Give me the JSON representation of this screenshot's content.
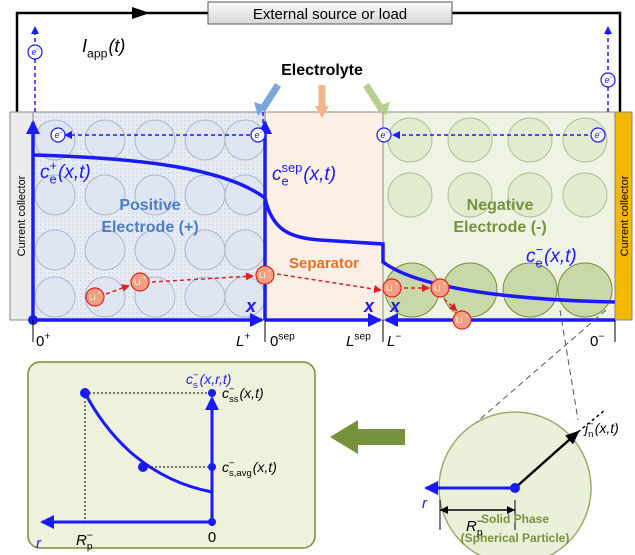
{
  "external_source": "External source or load",
  "applied_current": {
    "base": "I",
    "sub": "app",
    "arg": "(t)"
  },
  "electrolyte": "Electrolyte",
  "regions": {
    "left_collector": "Current collector",
    "positive": {
      "line1": "Positive",
      "line2": "Electrode (+)"
    },
    "separator": "Separator",
    "negative": {
      "line1": "Negative",
      "line2": "Electrode (-)"
    },
    "right_collector": "Current collector"
  },
  "electron": {
    "base": "e",
    "sup": "−"
  },
  "lithium_ion": {
    "base": "Li",
    "sup": "+"
  },
  "concentrations": {
    "positive": {
      "base": "c",
      "sup": "+",
      "sub": "e",
      "arg": "(x,t)"
    },
    "separator": {
      "base": "c",
      "sup": "sep",
      "sub": "e",
      "arg": "(x,t)"
    },
    "negative": {
      "base": "c",
      "sup": "−",
      "sub": "e",
      "arg": "(x,t)"
    }
  },
  "axis": {
    "x_label": "x",
    "ticks": [
      {
        "base": "0",
        "sup": "+"
      },
      {
        "base": "L",
        "sup": "+"
      },
      {
        "base": "0",
        "sup": "sep"
      },
      {
        "base": "L",
        "sup": "sep"
      },
      {
        "base": "L",
        "sup": "−"
      },
      {
        "base": "0",
        "sup": "−"
      }
    ]
  },
  "particle_panel": {
    "title": {
      "base": "c",
      "sup": "−",
      "sub": "s",
      "arg": "(x,r,t)"
    },
    "surface": {
      "base": "c",
      "sup": "−",
      "sub": "ss",
      "arg": "(x,t)"
    },
    "average": {
      "base": "c",
      "sup": "−",
      "sub": "s,avg",
      "arg": "(x,t)"
    },
    "r_label": "r",
    "radius": {
      "base": "R",
      "sup": "−",
      "sub": "p"
    },
    "origin": "0"
  },
  "solid_phase": {
    "flux": {
      "base": "j",
      "sup": "−",
      "sub": "n",
      "arg": "(x,t)"
    },
    "r_label": "r",
    "radius": {
      "base": "R",
      "sup": "−",
      "sub": "p"
    },
    "caption": [
      "Solid Phase",
      "(Spherical Particle)"
    ]
  }
}
